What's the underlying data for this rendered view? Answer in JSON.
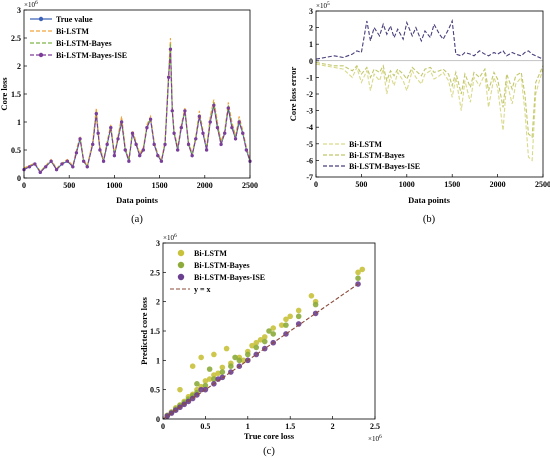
{
  "figure": {
    "panel_labels": [
      "(a)",
      "(b)",
      "(c)"
    ]
  },
  "colors": {
    "true_value": "#3d63b8",
    "bi_lstm": "#f2a23a",
    "bi_lstm_bayes": "#7fb347",
    "bi_lstm_bayes_ise": "#7d3c98",
    "error_bi_lstm": "#d9d98a",
    "error_bi_lstm_bayes": "#c2c76a",
    "error_bi_lstm_bayes_ise": "#4a3d7a",
    "scatter_bi_lstm": "#c8c23a",
    "scatter_bi_lstm_bayes": "#8cab3a",
    "scatter_bi_lstm_bayes_ise": "#6b3f8f",
    "ref_line": "#8b4a3a"
  },
  "chart_data": [
    {
      "panel": "(a)",
      "type": "line",
      "xlabel": "Data points",
      "ylabel": "Core loss",
      "y_exponent": "×10",
      "y_exponent_power": "6",
      "xlim": [
        0,
        2500
      ],
      "ylim": [
        0,
        3
      ],
      "xticks": [
        "0",
        "500",
        "1000",
        "1500",
        "2000",
        "2500"
      ],
      "yticks": [
        "0",
        "0.5",
        "1",
        "1.5",
        "2",
        "2.5",
        "3"
      ],
      "grid": false,
      "legend_position": "top-left",
      "x": [
        0,
        60,
        120,
        180,
        240,
        300,
        360,
        420,
        480,
        540,
        580,
        620,
        660,
        700,
        760,
        800,
        820,
        840,
        880,
        920,
        960,
        1000,
        1040,
        1080,
        1120,
        1160,
        1200,
        1240,
        1280,
        1320,
        1360,
        1400,
        1440,
        1480,
        1520,
        1560,
        1600,
        1620,
        1640,
        1660,
        1700,
        1740,
        1780,
        1820,
        1860,
        1900,
        1940,
        1980,
        2020,
        2060,
        2100,
        2140,
        2180,
        2220,
        2260,
        2300,
        2340,
        2380,
        2420,
        2460,
        2500
      ],
      "series": [
        {
          "name": "True value",
          "color_key": "true_value",
          "style": "solid-marker",
          "values": [
            0.15,
            0.2,
            0.25,
            0.1,
            0.2,
            0.3,
            0.15,
            0.25,
            0.3,
            0.2,
            0.45,
            0.7,
            0.3,
            0.2,
            0.6,
            1.15,
            0.8,
            0.5,
            0.3,
            0.6,
            0.9,
            0.4,
            0.7,
            1.0,
            0.5,
            0.3,
            0.8,
            0.6,
            0.4,
            0.5,
            0.9,
            1.05,
            0.6,
            0.4,
            0.3,
            0.6,
            1.8,
            2.3,
            1.2,
            0.8,
            0.5,
            0.9,
            1.2,
            0.6,
            0.4,
            0.7,
            1.1,
            0.8,
            0.5,
            1.0,
            1.3,
            0.9,
            0.6,
            0.8,
            1.25,
            0.9,
            0.7,
            1.0,
            0.8,
            0.5,
            0.3
          ]
        },
        {
          "name": "Bi-LSTM",
          "color_key": "bi_lstm",
          "style": "dashed",
          "values": [
            0.18,
            0.22,
            0.27,
            0.12,
            0.22,
            0.33,
            0.17,
            0.27,
            0.33,
            0.22,
            0.5,
            0.75,
            0.33,
            0.22,
            0.65,
            1.25,
            0.85,
            0.55,
            0.33,
            0.65,
            0.95,
            0.43,
            0.75,
            1.1,
            0.55,
            0.33,
            0.85,
            0.65,
            0.43,
            0.55,
            0.95,
            1.1,
            0.65,
            0.43,
            0.33,
            0.65,
            1.9,
            2.5,
            1.3,
            0.85,
            0.55,
            0.95,
            1.25,
            0.65,
            0.43,
            0.75,
            1.2,
            0.85,
            0.55,
            1.1,
            1.4,
            1.0,
            0.65,
            0.85,
            1.35,
            1.0,
            0.75,
            1.1,
            0.85,
            0.55,
            0.33
          ]
        },
        {
          "name": "Bi-LSTM-Bayes",
          "color_key": "bi_lstm_bayes",
          "style": "dashed",
          "values": [
            0.16,
            0.21,
            0.26,
            0.11,
            0.21,
            0.31,
            0.16,
            0.26,
            0.31,
            0.21,
            0.47,
            0.72,
            0.31,
            0.21,
            0.62,
            1.2,
            0.82,
            0.52,
            0.31,
            0.62,
            0.92,
            0.42,
            0.72,
            1.05,
            0.52,
            0.31,
            0.82,
            0.62,
            0.42,
            0.52,
            0.92,
            1.07,
            0.62,
            0.42,
            0.31,
            0.62,
            1.85,
            2.4,
            1.25,
            0.82,
            0.52,
            0.92,
            1.22,
            0.62,
            0.42,
            0.72,
            1.15,
            0.82,
            0.52,
            1.05,
            1.35,
            0.95,
            0.62,
            0.82,
            1.3,
            0.95,
            0.72,
            1.05,
            0.82,
            0.52,
            0.31
          ]
        },
        {
          "name": "Bi-LSTM-Bayes-ISE",
          "color_key": "bi_lstm_bayes_ise",
          "style": "dashed-marker",
          "values": [
            0.15,
            0.2,
            0.25,
            0.1,
            0.2,
            0.3,
            0.15,
            0.25,
            0.3,
            0.2,
            0.45,
            0.7,
            0.3,
            0.2,
            0.6,
            1.15,
            0.8,
            0.5,
            0.3,
            0.6,
            0.9,
            0.4,
            0.7,
            1.0,
            0.5,
            0.3,
            0.8,
            0.6,
            0.4,
            0.5,
            0.9,
            1.05,
            0.6,
            0.4,
            0.3,
            0.6,
            1.8,
            2.3,
            1.2,
            0.8,
            0.5,
            0.9,
            1.2,
            0.6,
            0.4,
            0.7,
            1.1,
            0.8,
            0.5,
            1.0,
            1.3,
            0.9,
            0.6,
            0.8,
            1.25,
            0.9,
            0.7,
            1.0,
            0.8,
            0.5,
            0.3
          ]
        }
      ]
    },
    {
      "panel": "(b)",
      "type": "line",
      "xlabel": "Data points",
      "ylabel": "Core loss error",
      "y_exponent": "×10",
      "y_exponent_power": "5",
      "xlim": [
        0,
        2500
      ],
      "ylim": [
        -7,
        3
      ],
      "xticks": [
        "0",
        "500",
        "1000",
        "1500",
        "2000",
        "2500"
      ],
      "yticks": [
        "-7",
        "-6",
        "-5",
        "-4",
        "-3",
        "-2",
        "-1",
        "0",
        "1",
        "2",
        "3"
      ],
      "grid": false,
      "legend_position": "bottom-left",
      "x": [
        0,
        100,
        200,
        300,
        400,
        450,
        500,
        560,
        600,
        640,
        700,
        740,
        780,
        820,
        860,
        900,
        960,
        1000,
        1060,
        1100,
        1160,
        1200,
        1260,
        1300,
        1360,
        1400,
        1460,
        1500,
        1540,
        1600,
        1640,
        1700,
        1740,
        1800,
        1860,
        1900,
        1960,
        2000,
        2060,
        2100,
        2160,
        2200,
        2260,
        2300,
        2340,
        2380,
        2420,
        2460,
        2500
      ],
      "series": [
        {
          "name": "Bi-LSTM",
          "color_key": "error_bi_lstm",
          "style": "dashed",
          "values": [
            -0.2,
            -0.3,
            -0.4,
            -0.5,
            -1.0,
            -0.4,
            -1.3,
            -0.6,
            -1.8,
            -0.8,
            -1.2,
            -0.5,
            -2.0,
            -0.9,
            -1.5,
            -0.7,
            -1.2,
            -1.8,
            -0.6,
            -1.0,
            -1.4,
            -0.8,
            -0.6,
            -1.1,
            -0.9,
            -0.7,
            -1.2,
            -2.2,
            -1.0,
            -3.0,
            -1.2,
            -2.5,
            -1.0,
            -1.5,
            -0.8,
            -2.8,
            -1.0,
            -1.6,
            -4.2,
            -1.2,
            -2.6,
            -1.4,
            -1.0,
            -3.0,
            -5.8,
            -6.0,
            -2.0,
            -1.2,
            -0.5
          ]
        },
        {
          "name": "Bi-LSTM-Bayes",
          "color_key": "error_bi_lstm_bayes",
          "style": "dashed",
          "values": [
            -0.1,
            -0.2,
            -0.3,
            -0.3,
            -0.6,
            -0.3,
            -0.8,
            -0.4,
            -1.0,
            -0.5,
            -0.7,
            -0.3,
            -1.2,
            -0.6,
            -0.9,
            -0.5,
            -0.8,
            -1.1,
            -0.4,
            -0.6,
            -0.9,
            -0.5,
            -0.4,
            -0.7,
            -0.6,
            -0.5,
            -0.8,
            -1.5,
            -0.7,
            -2.0,
            -0.8,
            -1.6,
            -0.7,
            -1.0,
            -0.5,
            -1.8,
            -0.7,
            -1.1,
            -2.8,
            -0.8,
            -1.7,
            -0.9,
            -0.7,
            -2.0,
            -4.4,
            -4.6,
            -1.3,
            -0.8,
            -0.3
          ]
        },
        {
          "name": "Bi-LSTM-Bayes-ISE",
          "color_key": "error_bi_lstm_bayes_ise",
          "style": "dashed",
          "values": [
            0.1,
            0.2,
            0.3,
            0.2,
            0.4,
            0.6,
            0.5,
            2.4,
            1.2,
            2.0,
            1.5,
            2.2,
            1.6,
            2.1,
            1.4,
            1.9,
            1.3,
            2.3,
            1.5,
            2.0,
            1.2,
            1.8,
            1.4,
            2.2,
            1.6,
            1.3,
            1.9,
            2.4,
            0.4,
            0.3,
            0.5,
            0.4,
            0.3,
            0.6,
            0.4,
            0.3,
            0.5,
            0.4,
            0.6,
            0.3,
            0.5,
            0.4,
            0.3,
            0.5,
            0.6,
            0.4,
            0.3,
            0.2,
            0.1
          ]
        }
      ]
    },
    {
      "panel": "(c)",
      "type": "scatter",
      "xlabel": "True core loss",
      "ylabel": "Predicted core loss",
      "x_exponent": "×10",
      "x_exponent_power": "6",
      "y_exponent": "×10",
      "y_exponent_power": "6",
      "xlim": [
        0,
        2.5
      ],
      "ylim": [
        0,
        3
      ],
      "xticks": [
        "0",
        "0.5",
        "1",
        "1.5",
        "2",
        "2.5"
      ],
      "yticks": [
        "0",
        "0.5",
        "1",
        "1.5",
        "2",
        "2.5",
        "3"
      ],
      "grid": false,
      "legend_position": "top-left",
      "series": [
        {
          "name": "Bi-LSTM",
          "color_key": "scatter_bi_lstm",
          "x": [
            0.05,
            0.1,
            0.15,
            0.2,
            0.25,
            0.3,
            0.35,
            0.4,
            0.45,
            0.5,
            0.55,
            0.6,
            0.65,
            0.7,
            0.8,
            0.9,
            1.0,
            1.05,
            1.1,
            1.2,
            1.3,
            1.4,
            1.5,
            1.6,
            1.8,
            2.3,
            0.2,
            0.35,
            0.45,
            0.6,
            0.75,
            0.95,
            1.15,
            1.45,
            1.75,
            2.35
          ],
          "values": [
            0.06,
            0.12,
            0.19,
            0.24,
            0.3,
            0.38,
            0.42,
            0.5,
            0.55,
            0.65,
            0.68,
            0.75,
            0.78,
            0.88,
            0.95,
            1.05,
            1.15,
            1.25,
            1.3,
            1.4,
            1.55,
            1.6,
            1.75,
            1.85,
            2.0,
            2.5,
            0.5,
            0.9,
            1.05,
            1.1,
            1.2,
            1.0,
            1.35,
            1.7,
            2.1,
            2.55
          ]
        },
        {
          "name": "Bi-LSTM-Bayes",
          "color_key": "scatter_bi_lstm_bayes",
          "x": [
            0.05,
            0.1,
            0.15,
            0.2,
            0.25,
            0.3,
            0.35,
            0.4,
            0.5,
            0.6,
            0.7,
            0.8,
            0.9,
            1.0,
            1.1,
            1.2,
            1.3,
            1.45,
            1.6,
            1.8,
            2.3,
            0.4,
            0.55,
            0.85,
            1.25
          ],
          "values": [
            0.06,
            0.11,
            0.17,
            0.23,
            0.28,
            0.34,
            0.4,
            0.45,
            0.57,
            0.68,
            0.8,
            0.9,
            1.0,
            1.1,
            1.22,
            1.32,
            1.45,
            1.6,
            1.75,
            1.95,
            2.4,
            0.6,
            0.85,
            1.05,
            1.5
          ]
        },
        {
          "name": "Bi-LSTM-Bayes-ISE",
          "color_key": "scatter_bi_lstm_bayes_ise",
          "x": [
            0.05,
            0.1,
            0.15,
            0.2,
            0.25,
            0.3,
            0.35,
            0.4,
            0.5,
            0.6,
            0.7,
            0.8,
            0.9,
            1.0,
            1.1,
            1.2,
            1.3,
            1.45,
            1.6,
            1.8,
            2.3,
            0.45,
            0.65
          ],
          "values": [
            0.05,
            0.1,
            0.15,
            0.2,
            0.25,
            0.3,
            0.35,
            0.41,
            0.5,
            0.6,
            0.71,
            0.8,
            0.9,
            1.0,
            1.1,
            1.2,
            1.3,
            1.45,
            1.62,
            1.8,
            2.3,
            0.5,
            0.68
          ]
        },
        {
          "name": "y = x",
          "color_key": "ref_line",
          "style": "dashed-line",
          "x": [
            0,
            2.3
          ],
          "values": [
            0,
            2.3
          ]
        }
      ]
    }
  ]
}
